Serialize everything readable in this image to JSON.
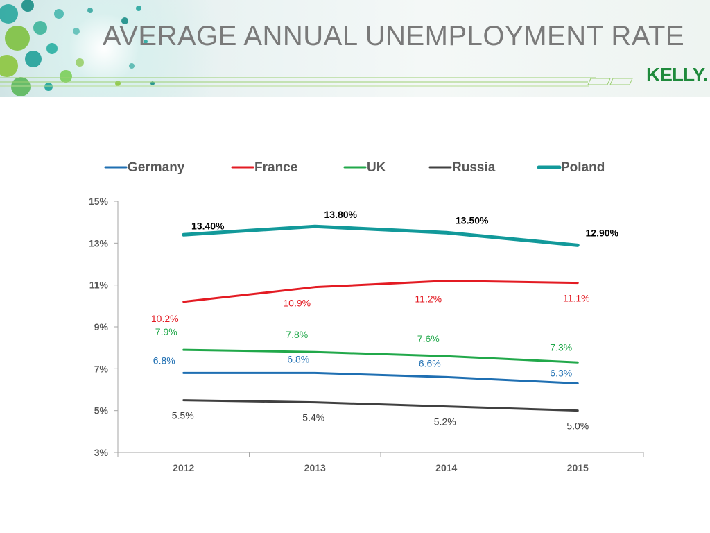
{
  "header": {
    "title": "AVERAGE ANNUAL UNEMPLOYMENT RATE",
    "logo_text": "KELLY."
  },
  "chart_data": {
    "type": "line",
    "categories": [
      "2012",
      "2013",
      "2014",
      "2015"
    ],
    "ylim": [
      3,
      15
    ],
    "y_ticks": [
      "3%",
      "5%",
      "7%",
      "9%",
      "11%",
      "13%",
      "15%"
    ],
    "legend_position": "top",
    "grid": false,
    "series": [
      {
        "name": "Germany",
        "color": "#1f6fb2",
        "values": [
          6.8,
          6.8,
          6.6,
          6.3
        ],
        "labels": [
          "6.8%",
          "6.8%",
          "6.6%",
          "6.3%"
        ]
      },
      {
        "name": "France",
        "color": "#e31b23",
        "values": [
          10.2,
          10.9,
          11.2,
          11.1
        ],
        "labels": [
          "10.2%",
          "10.9%",
          "11.2%",
          "11.1%"
        ]
      },
      {
        "name": "UK",
        "color": "#21a84a",
        "values": [
          7.9,
          7.8,
          7.6,
          7.3
        ],
        "labels": [
          "7.9%",
          "7.8%",
          "7.6%",
          "7.3%"
        ]
      },
      {
        "name": "Russia",
        "color": "#404040",
        "values": [
          5.5,
          5.4,
          5.2,
          5.0
        ],
        "labels": [
          "5.5%",
          "5.4%",
          "5.2%",
          "5.0%"
        ]
      },
      {
        "name": "Poland",
        "color": "#12999a",
        "values": [
          13.4,
          13.8,
          13.5,
          12.9
        ],
        "labels": [
          "13.40%",
          "13.80%",
          "13.50%",
          "12.90%"
        ]
      }
    ]
  }
}
